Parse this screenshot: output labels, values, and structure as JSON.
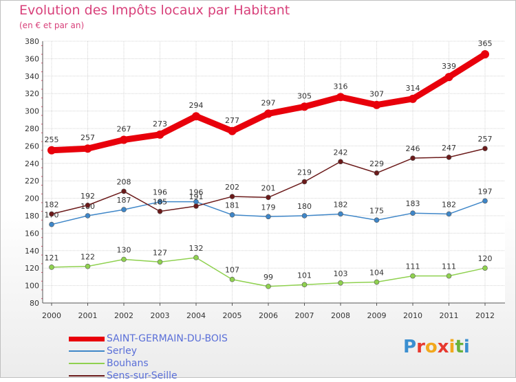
{
  "header": {
    "title": "Evolution des Impôts locaux par Habitant",
    "subtitle": "(en € et par an)"
  },
  "logo": {
    "letters": [
      "P",
      "r",
      "o",
      "x",
      "i",
      "t",
      "i"
    ],
    "colors": [
      "#3b8fd0",
      "#e7392f",
      "#f2a81d",
      "#e7392f",
      "#f2a81d",
      "#69b23a",
      "#3b8fd0"
    ]
  },
  "chart_data": {
    "type": "line",
    "title": "Evolution des Impôts locaux par Habitant",
    "subtitle": "(en € et par an)",
    "x": [
      "2000",
      "2001",
      "2002",
      "2003",
      "2004",
      "2005",
      "2006",
      "2007",
      "2008",
      "2009",
      "2010",
      "2011",
      "2012"
    ],
    "ylim": [
      80,
      380
    ],
    "yticks": [
      80,
      100,
      120,
      140,
      160,
      180,
      200,
      220,
      240,
      260,
      280,
      300,
      320,
      340,
      360,
      380
    ],
    "grid": true,
    "legend_position": "bottom-left",
    "series": [
      {
        "name": "SAINT-GERMAIN-DU-BOIS",
        "color": "#e8000b",
        "values": [
          255,
          257,
          267,
          273,
          294,
          277,
          297,
          305,
          316,
          307,
          314,
          339,
          365
        ]
      },
      {
        "name": "Serley",
        "color": "#3e86c8",
        "values": [
          170,
          180,
          187,
          196,
          196,
          181,
          179,
          180,
          182,
          175,
          183,
          182,
          197
        ],
        "labels": [
          "170",
          "180",
          "187",
          "196",
          "196",
          "181",
          "179",
          "180",
          "182",
          "175",
          "183",
          "182",
          "197"
        ]
      },
      {
        "name": "Bouhans",
        "color": "#8fd14f",
        "values": [
          121,
          122,
          130,
          127,
          132,
          107,
          99,
          101,
          103,
          104,
          111,
          111,
          120
        ]
      },
      {
        "name": "Sens-sur-Seille",
        "color": "#6b1a1a",
        "values": [
          182,
          192,
          208,
          185,
          191,
          202,
          201,
          219,
          242,
          229,
          246,
          247,
          257
        ],
        "labels": [
          "182",
          "192",
          "208",
          "185",
          "191",
          "202",
          "201",
          "219",
          "242",
          "229",
          "246",
          "247",
          "257"
        ]
      }
    ]
  }
}
